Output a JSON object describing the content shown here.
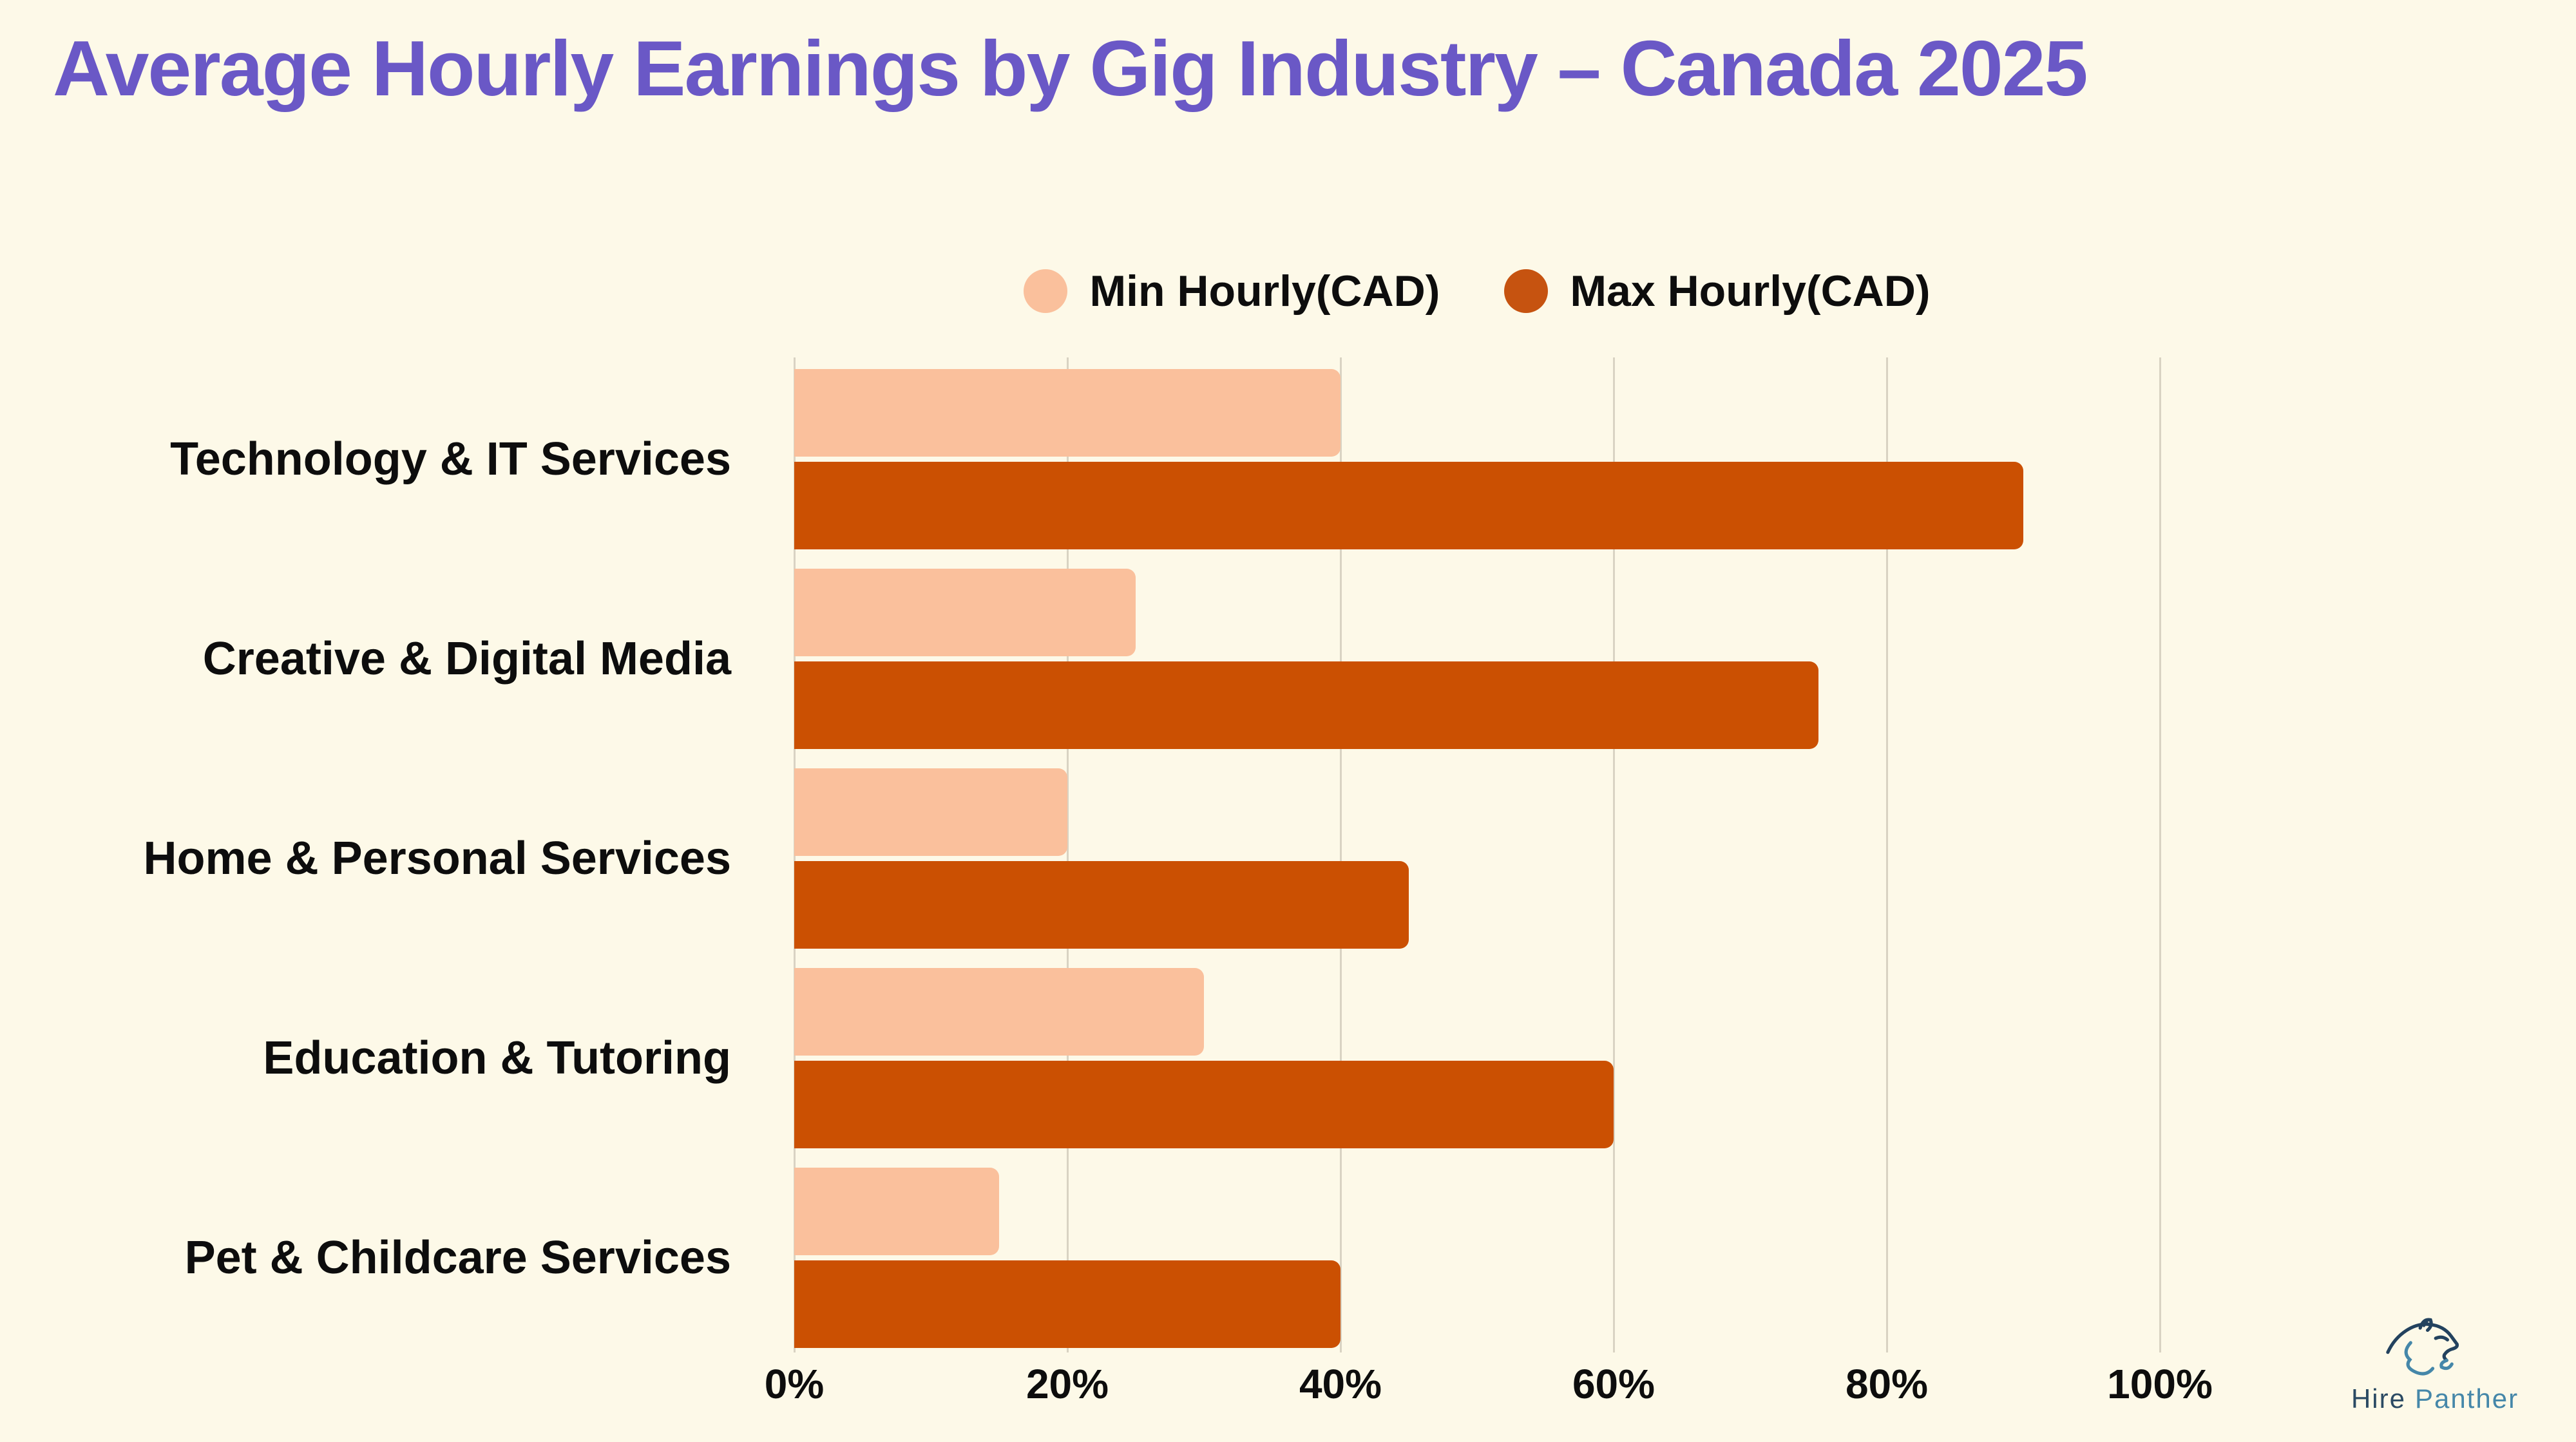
{
  "title": "Average Hourly Earnings by Gig Industry – Canada 2025",
  "legend": [
    {
      "label": "Min Hourly(CAD)",
      "color": "#FAC09C"
    },
    {
      "label": "Max Hourly(CAD)",
      "color": "#C65310"
    }
  ],
  "chart_data": {
    "type": "bar",
    "orientation": "horizontal",
    "title": "Average Hourly Earnings by Gig Industry – Canada 2025",
    "categories": [
      "Technology & IT Services",
      "Creative & Digital Media",
      "Home & Personal Services",
      "Education & Tutoring",
      "Pet & Childcare Services"
    ],
    "series": [
      {
        "name": "Min Hourly(CAD)",
        "color": "#FAC09C",
        "values": [
          40,
          25,
          20,
          30,
          15
        ]
      },
      {
        "name": "Max Hourly(CAD)",
        "color": "#CB5002",
        "values": [
          90,
          75,
          45,
          60,
          40
        ]
      }
    ],
    "x_ticks": [
      "0%",
      "20%",
      "40%",
      "60%",
      "80%",
      "100%"
    ],
    "x_tick_values": [
      0,
      20,
      40,
      60,
      80,
      100
    ],
    "xlim": [
      0,
      100
    ],
    "grid": "vertical-gridlines",
    "legend_position": "top-center"
  },
  "logo": {
    "icon": "panther-head-icon",
    "brand_first": "Hire",
    "brand_second": "Panther"
  },
  "colors": {
    "background": "#FDF9E8",
    "title": "#6A58C6",
    "min_bar": "#FAC09C",
    "max_bar": "#CB5002",
    "gridline": "#D9D3C3",
    "text": "#0D0D0D",
    "logo_navy": "#2B4A63",
    "logo_teal": "#4587A9"
  }
}
